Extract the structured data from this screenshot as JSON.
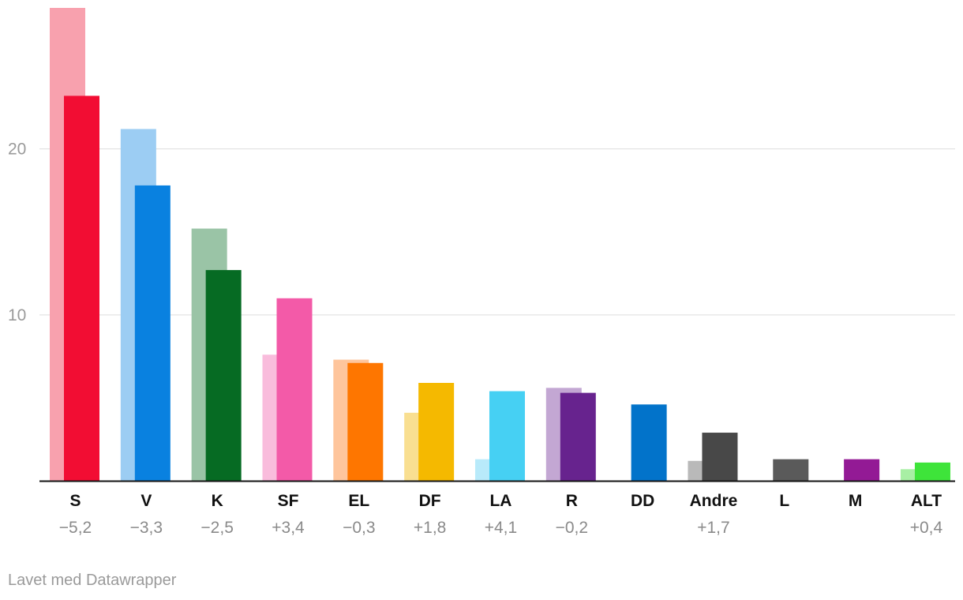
{
  "chart_data": {
    "type": "bar",
    "ylim": [
      0,
      28.5
    ],
    "yticks": [
      10,
      20
    ],
    "grid": true,
    "categories": [
      "S",
      "V",
      "K",
      "SF",
      "EL",
      "DF",
      "LA",
      "R",
      "DD",
      "Andre",
      "L",
      "M",
      "ALT"
    ],
    "series": [
      {
        "values": [
          28.5,
          21.2,
          15.2,
          7.6,
          7.3,
          4.1,
          1.3,
          5.6,
          null,
          1.2,
          null,
          null,
          0.7
        ]
      },
      {
        "values": [
          23.2,
          17.8,
          12.7,
          11.0,
          7.1,
          5.9,
          5.4,
          5.3,
          4.6,
          2.9,
          1.3,
          1.3,
          1.1
        ]
      }
    ],
    "diff_labels": [
      "−5,2",
      "−3,3",
      "−2,5",
      "+3,4",
      "−0,3",
      "+1,8",
      "+4,1",
      "−0,2",
      "",
      "+1,7",
      "",
      "",
      "+0,4"
    ],
    "colors": {
      "previous": [
        "#f8a1ae",
        "#9ccdf3",
        "#9ac4a6",
        "#f9bcdc",
        "#fec59c",
        "#f9df91",
        "#b8eafa",
        "#c3a7d3",
        "#0273ca",
        "#b9b9b9",
        "#5a5a5a",
        "#931a95",
        "#a8efa4"
      ],
      "current": [
        "#f20d33",
        "#0981e0",
        "#066b23",
        "#f35aa8",
        "#fe7600",
        "#f5b900",
        "#46d0f3",
        "#67238e",
        "#0273ca",
        "#484848",
        "#5a5a5a",
        "#931a95",
        "#3ee43a"
      ]
    }
  },
  "footer": {
    "credit": "Lavet med Datawrapper"
  }
}
